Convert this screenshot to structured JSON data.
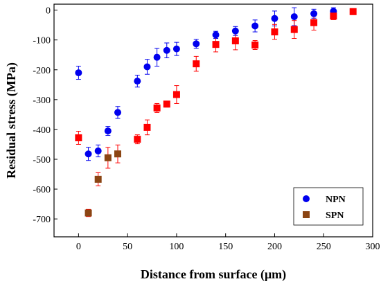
{
  "chart_data": {
    "type": "scatter",
    "xlabel": "Distance from surface (μm)",
    "ylabel": "Residual stress (MPa)",
    "xlim": [
      -25,
      300
    ],
    "ylim": [
      -760,
      20
    ],
    "x_ticks": [
      0,
      50,
      100,
      150,
      200,
      250,
      300
    ],
    "y_ticks": [
      0,
      -100,
      -200,
      -300,
      -400,
      -500,
      -600,
      -700
    ],
    "grid": false,
    "legend_position": "bottom-right",
    "series": [
      {
        "name": "NPN",
        "marker": "circle",
        "color": "#0000ee",
        "error_color": "#0000ee",
        "x": [
          0,
          10,
          20,
          30,
          40,
          60,
          70,
          80,
          90,
          100,
          120,
          140,
          160,
          180,
          200,
          220,
          240,
          260
        ],
        "y": [
          -210,
          -482,
          -472,
          -405,
          -343,
          -238,
          -190,
          -158,
          -135,
          -130,
          -113,
          -83,
          -70,
          -53,
          -28,
          -22,
          -12,
          -4
        ],
        "err": [
          22,
          22,
          20,
          15,
          20,
          20,
          25,
          30,
          25,
          22,
          15,
          12,
          15,
          20,
          25,
          30,
          15,
          12
        ]
      },
      {
        "name": "SPN",
        "marker": "square",
        "color": "#ff0000",
        "error_color": "#ff0000",
        "x": [
          0,
          10,
          20,
          30,
          40,
          60,
          70,
          80,
          90,
          100,
          120,
          140,
          160,
          180,
          200,
          220,
          240,
          260,
          280
        ],
        "y": [
          -428,
          -680,
          -567,
          -495,
          -482,
          -433,
          -393,
          -328,
          -315,
          -283,
          -180,
          -115,
          -103,
          -117,
          -73,
          -65,
          -42,
          -20,
          -5
        ],
        "err": [
          22,
          12,
          22,
          35,
          30,
          15,
          25,
          15,
          10,
          30,
          25,
          25,
          30,
          15,
          25,
          30,
          25,
          12,
          10
        ],
        "point_colors": [
          "#ff0000",
          "#8b4513",
          "#8b4513",
          "#8b4513",
          "#8b4513",
          "#ff0000",
          "#ff0000",
          "#ff0000",
          "#ff0000",
          "#ff0000",
          "#ff0000",
          "#ff0000",
          "#ff0000",
          "#ff0000",
          "#ff0000",
          "#ff0000",
          "#ff0000",
          "#ff0000",
          "#ff0000"
        ]
      }
    ]
  },
  "legend": {
    "items": [
      {
        "label": "NPN",
        "marker": "circle",
        "color": "#0000ee"
      },
      {
        "label": "SPN",
        "marker": "square",
        "color": "#8b4513"
      }
    ]
  }
}
